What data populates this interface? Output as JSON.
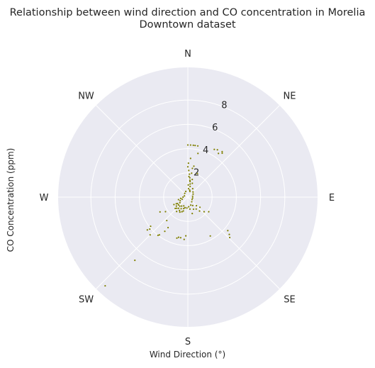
{
  "chart_data": {
    "type": "scatter",
    "projection": "polar",
    "title": "Relationship between wind direction and CO concentration in Morelia Downtown dataset",
    "title_lines": [
      "Relationship between wind direction and CO concentration in Morelia",
      "Downtown dataset"
    ],
    "xlabel": "Wind Direction (°)",
    "ylabel": "CO Concentration (ppm)",
    "theta_direction": "clockwise",
    "theta_zero": "N",
    "theta_tick_labels": [
      {
        "deg": 0,
        "label": "N"
      },
      {
        "deg": 45,
        "label": "NE"
      },
      {
        "deg": 90,
        "label": "E"
      },
      {
        "deg": 135,
        "label": "SE"
      },
      {
        "deg": 180,
        "label": "S"
      },
      {
        "deg": 225,
        "label": "SW"
      },
      {
        "deg": 270,
        "label": "W"
      },
      {
        "deg": 315,
        "label": "NW"
      }
    ],
    "r_ticks": [
      2,
      4,
      6,
      8
    ],
    "r_tick_labels": [
      "2",
      "4",
      "6",
      "8"
    ],
    "r_tick_label_angle_deg": 22.5,
    "rlim": [
      0,
      10.7
    ],
    "grid": true,
    "background_color": "#eaeaf2",
    "grid_color": "#ffffff",
    "marker_color": "#808000",
    "points": [
      [
        0,
        4.3
      ],
      [
        3,
        4.3
      ],
      [
        6,
        4.3
      ],
      [
        8,
        4.3
      ],
      [
        11,
        4.3
      ],
      [
        4,
        3.2
      ],
      [
        9,
        2.4
      ],
      [
        29,
        4.5
      ],
      [
        32,
        4.6
      ],
      [
        35,
        4.4
      ],
      [
        38,
        4.6
      ],
      [
        37,
        4.7
      ],
      [
        13,
        3.7
      ],
      [
        22,
        2.1
      ],
      [
        0,
        2.5
      ],
      [
        2,
        2.2
      ],
      [
        4,
        1.9
      ],
      [
        6,
        1.6
      ],
      [
        8,
        1.3
      ],
      [
        10,
        1.1
      ],
      [
        12,
        0.9
      ],
      [
        5,
        0.7
      ],
      [
        15,
        0.6
      ],
      [
        20,
        0.5
      ],
      [
        2,
        1.0
      ],
      [
        7,
        1.4
      ],
      [
        3,
        1.7
      ],
      [
        9,
        2.0
      ],
      [
        14,
        1.5
      ],
      [
        18,
        1.2
      ],
      [
        1,
        2.8
      ],
      [
        11,
        2.6
      ],
      [
        30,
        0.8
      ],
      [
        45,
        0.6
      ],
      [
        60,
        0.5
      ],
      [
        80,
        0.4
      ],
      [
        100,
        0.4
      ],
      [
        120,
        0.4
      ],
      [
        140,
        0.5
      ],
      [
        150,
        0.8
      ],
      [
        155,
        1.1
      ],
      [
        160,
        0.7
      ],
      [
        165,
        1.4
      ],
      [
        170,
        1.0
      ],
      [
        175,
        0.8
      ],
      [
        185,
        0.9
      ],
      [
        195,
        0.9
      ],
      [
        200,
        1.0
      ],
      [
        205,
        0.8
      ],
      [
        210,
        1.1
      ],
      [
        215,
        0.9
      ],
      [
        220,
        1.2
      ],
      [
        225,
        1.3
      ],
      [
        230,
        1.0
      ],
      [
        235,
        0.8
      ],
      [
        240,
        1.1
      ],
      [
        245,
        0.7
      ],
      [
        250,
        0.5
      ],
      [
        255,
        0.8
      ],
      [
        260,
        0.6
      ],
      [
        270,
        0.4
      ],
      [
        290,
        0.3
      ],
      [
        320,
        0.4
      ],
      [
        340,
        0.5
      ],
      [
        208,
        1.4
      ],
      [
        212,
        1.3
      ],
      [
        218,
        1.5
      ],
      [
        222,
        1.0
      ],
      [
        228,
        1.4
      ],
      [
        232,
        1.2
      ],
      [
        238,
        1.0
      ],
      [
        242,
        1.3
      ],
      [
        198,
        1.2
      ],
      [
        202,
        1.3
      ],
      [
        135,
        1.0
      ],
      [
        130,
        1.3
      ],
      [
        140,
        1.5
      ],
      [
        125,
        2.1
      ],
      [
        132,
        1.8
      ],
      [
        145,
        1.2
      ],
      [
        130,
        4.3
      ],
      [
        132,
        4.6
      ],
      [
        134,
        4.8
      ],
      [
        150,
        3.7
      ],
      [
        183,
        3.2
      ],
      [
        185,
        3.5
      ],
      [
        190,
        3.4
      ],
      [
        193,
        3.4
      ],
      [
        195,
        3.5
      ],
      [
        213,
        3.0
      ],
      [
        214,
        3.4
      ],
      [
        218,
        4.0
      ],
      [
        217,
        3.9
      ],
      [
        230,
        4.1
      ],
      [
        231,
        4.3
      ],
      [
        232,
        3.9
      ],
      [
        225,
        4.4
      ],
      [
        222,
        2.6
      ],
      [
        223,
        10.0
      ],
      [
        220,
        6.8
      ],
      [
        242,
        2.6
      ],
      [
        237,
        2.2
      ]
    ]
  }
}
